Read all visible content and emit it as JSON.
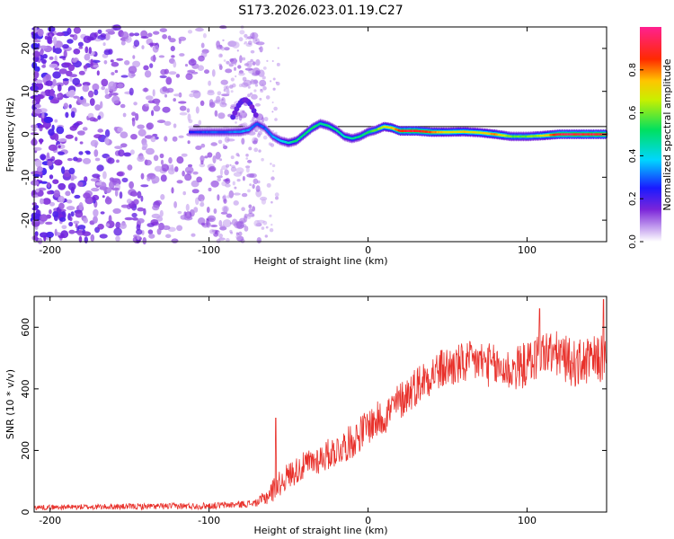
{
  "title": "S173.2026.023.01.19.C27",
  "chart_data": [
    {
      "type": "heatmap",
      "title": "S173.2026.023.01.19.C27",
      "xlabel": "Height of straight line (km)",
      "ylabel": "Frequency (Hz)",
      "xlim": [
        -210,
        150
      ],
      "ylim": [
        -25,
        25
      ],
      "xticks": [
        -200,
        -100,
        0,
        100
      ],
      "yticks": [
        -20,
        -10,
        0,
        10,
        20
      ],
      "noise_region_x": [
        -210,
        -65
      ],
      "signal_start_x": -112,
      "ridge": {
        "x": [
          -112,
          -100,
          -90,
          -80,
          -75,
          -70,
          -65,
          -60,
          -55,
          -50,
          -45,
          -40,
          -35,
          -30,
          -25,
          -20,
          -15,
          -10,
          -5,
          0,
          5,
          10,
          15,
          20,
          30,
          40,
          50,
          60,
          70,
          80,
          90,
          100,
          110,
          120,
          130,
          140,
          150
        ],
        "y": [
          0.5,
          0.5,
          0.5,
          0.6,
          1.0,
          2.5,
          1.5,
          -0.5,
          -1.5,
          -2.0,
          -1.5,
          0.0,
          1.5,
          2.5,
          2.0,
          1.0,
          -0.5,
          -1.0,
          -0.5,
          0.5,
          1.0,
          1.8,
          1.5,
          0.8,
          0.8,
          0.5,
          0.5,
          0.6,
          0.4,
          0.0,
          -0.5,
          -0.5,
          -0.3,
          0.0,
          0.0,
          0.0,
          0.0
        ],
        "amp": [
          0.25,
          0.3,
          0.3,
          0.35,
          0.35,
          0.3,
          0.3,
          0.35,
          0.4,
          0.45,
          0.5,
          0.5,
          0.55,
          0.5,
          0.5,
          0.5,
          0.45,
          0.5,
          0.5,
          0.55,
          0.6,
          0.7,
          0.75,
          0.9,
          0.95,
          0.85,
          0.7,
          0.75,
          0.7,
          0.8,
          0.6,
          0.6,
          0.7,
          0.95,
          0.95,
          0.95,
          0.95
        ]
      },
      "stray_component": {
        "x": [
          -85,
          -70
        ],
        "y": [
          4,
          8
        ]
      },
      "reference_line_y": 1.8
    },
    {
      "type": "colorbar",
      "label": "Normalized spectral amplitude",
      "range": [
        0.0,
        1.0
      ],
      "ticks": [
        0.0,
        0.2,
        0.4,
        0.6,
        0.8
      ],
      "tick_labels": [
        "0.0",
        "0.2",
        "0.4",
        "0.6",
        "0.8"
      ]
    },
    {
      "type": "line",
      "xlabel": "Height of straight line (km)",
      "ylabel": "SNR (10 * v/v)",
      "xlim": [
        -210,
        150
      ],
      "ylim": [
        0,
        700
      ],
      "xticks": [
        -200,
        -100,
        0,
        100
      ],
      "yticks": [
        0,
        200,
        400,
        600
      ],
      "color": "#e8302a",
      "trend": {
        "x": [
          -210,
          -100,
          -80,
          -70,
          -65,
          -60,
          -50,
          -40,
          -30,
          -20,
          -10,
          0,
          10,
          20,
          30,
          40,
          50,
          60,
          70,
          80,
          90,
          100,
          110,
          120,
          130,
          140,
          150
        ],
        "y": [
          15,
          20,
          25,
          30,
          45,
          70,
          120,
          150,
          175,
          200,
          230,
          280,
          310,
          360,
          410,
          450,
          470,
          480,
          490,
          470,
          460,
          480,
          520,
          510,
          480,
          490,
          500
        ]
      },
      "noise_amplitude": {
        "x": [
          -210,
          -70,
          -60,
          0,
          50,
          150
        ],
        "y": [
          8,
          12,
          40,
          60,
          70,
          80
        ]
      },
      "spikes": [
        {
          "x": -58,
          "y": 305
        },
        {
          "x": 148,
          "y": 690
        },
        {
          "x": 108,
          "y": 660
        }
      ]
    }
  ],
  "colors": {
    "axis": "#000000",
    "line": "#e8302a",
    "reference": "#000000"
  }
}
